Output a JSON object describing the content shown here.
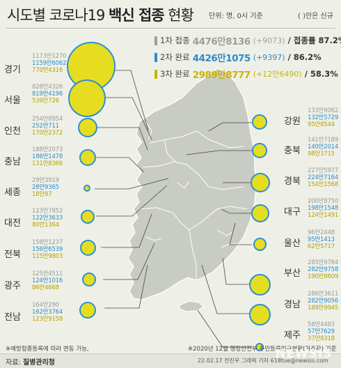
{
  "header": {
    "title_regular": "시도별 코로나19",
    "title_bold": "백신 접종",
    "title_end": "현황",
    "unit": "단위: 명, 0시 기준",
    "new_note": "( )안은 신규"
  },
  "legend": [
    {
      "label": "1차 접종",
      "total": "4476만8136",
      "delta": "(+9073)",
      "rate_label": "/ 접종률 87.2%",
      "color": "#9e9e9e"
    },
    {
      "label": "2차 완료",
      "total": "4426만1075",
      "delta": "(+9397)",
      "rate_label": "/ 86.2%",
      "color": "#2e8bc9"
    },
    {
      "label": "3차 완료",
      "total": "2989만8777",
      "delta": "(+12만6490)",
      "rate_label": "/ 58.3%",
      "color": "#c9b400"
    }
  ],
  "colors": {
    "bubble_fill": "#e6dd21",
    "bubble_ring": "#2f8fd0",
    "dose1": "#999999",
    "dose2": "#2e8bc9",
    "dose3": "#b8a000"
  },
  "regions_left": [
    {
      "name": "경기",
      "dose1": "1173만1270",
      "dose2": "1159만6062",
      "dose3": "770만4316"
    },
    {
      "name": "서울",
      "dose1": "828만4326",
      "dose2": "819만4196",
      "dose3": "539만726"
    },
    {
      "name": "인천",
      "dose1": "254만8954",
      "dose2": "252만711",
      "dose3": "170만2372"
    },
    {
      "name": "충남",
      "dose1": "188만2073",
      "dose2": "186만1478",
      "dose3": "131만8366"
    },
    {
      "name": "세종",
      "dose1": "29만3919",
      "dose2": "28만9365",
      "dose3": "18만97"
    },
    {
      "name": "대전",
      "dose1": "123만7852",
      "dose2": "122만3633",
      "dose3": "80만1364"
    },
    {
      "name": "전북",
      "dose1": "158만1237",
      "dose2": "156만6539",
      "dose3": "115만9803"
    },
    {
      "name": "광주",
      "dose1": "125만4511",
      "dose2": "124만1016",
      "dose3": "86만4668"
    },
    {
      "name": "전남",
      "dose1": "164만290",
      "dose2": "162만3764",
      "dose3": "123만9158"
    }
  ],
  "regions_right": [
    {
      "name": "강원",
      "dose1": "133만9062",
      "dose2": "132만5729",
      "dose3": "95만8544"
    },
    {
      "name": "충북",
      "dose1": "141만7189",
      "dose2": "140만2014",
      "dose3": "98만3715"
    },
    {
      "name": "경북",
      "dose1": "227만5977",
      "dose2": "224만7164",
      "dose3": "154만1568"
    },
    {
      "name": "대구",
      "dose1": "200만8750",
      "dose2": "198만1548",
      "dose3": "124만1491"
    },
    {
      "name": "울산",
      "dose1": "96만2448",
      "dose2": "95만1413",
      "dose3": "62만5717"
    },
    {
      "name": "부산",
      "dose1": "285만9784",
      "dose2": "282만9758",
      "dose3": "190만8609"
    },
    {
      "name": "경남",
      "dose1": "286만3611",
      "dose2": "282만9056",
      "dose3": "189만9945"
    },
    {
      "name": "제주",
      "dose1": "58만4483",
      "dose2": "57만7629",
      "dose3": "37만8318"
    }
  ],
  "footer": {
    "note1": "※예방접종등록에 따라 변동 가능,",
    "note2": "※2020년 12월 행정안전부 주민등록인구현황(거주자) 기준",
    "source_prefix": "자료:",
    "source_name": "질병관리청",
    "credit": "22.02.17  전진우 그래픽 기자 618tue@newsis.com",
    "watermark": "NEWSIS"
  }
}
